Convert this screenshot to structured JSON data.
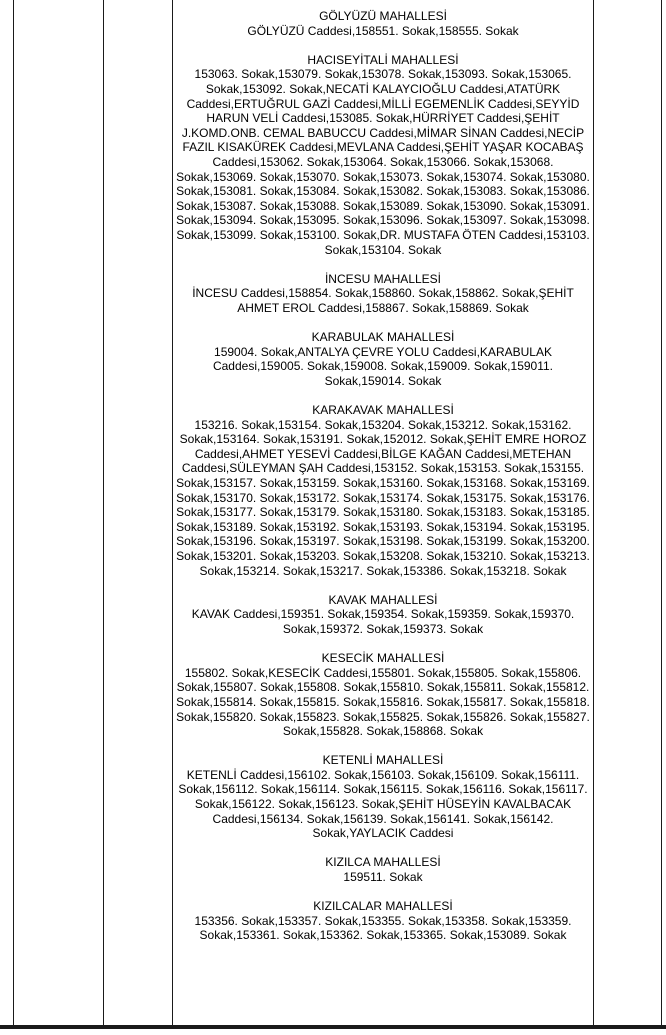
{
  "colors": {
    "background": "#ffffff",
    "text": "#000000",
    "table_border": "#1a1a1a"
  },
  "table": {
    "sections": [
      {
        "title": "GÖLYÜZÜ MAHALLESİ",
        "streets": "GÖLYÜZÜ Caddesi,158551. Sokak,158555. Sokak"
      },
      {
        "title": "HACISEYİTALİ MAHALLESİ",
        "streets": "153063. Sokak,153079. Sokak,153078. Sokak,153093. Sokak,153065. Sokak,153092. Sokak,NECATİ KALAYCIOĞLU Caddesi,ATATÜRK Caddesi,ERTUĞRUL GAZİ Caddesi,MİLLİ EGEMENLİK Caddesi,SEYYİD HARUN VELİ Caddesi,153085. Sokak,HÜRRİYET Caddesi,ŞEHİT J.KOMD.ONB. CEMAL BABUCCU Caddesi,MİMAR SİNAN Caddesi,NECİP FAZIL KISAKÜREK Caddesi,MEVLANA Caddesi,ŞEHİT YAŞAR KOCABAŞ Caddesi,153062. Sokak,153064. Sokak,153066. Sokak,153068. Sokak,153069. Sokak,153070. Sokak,153073. Sokak,153074. Sokak,153080. Sokak,153081. Sokak,153084. Sokak,153082. Sokak,153083. Sokak,153086. Sokak,153087. Sokak,153088. Sokak,153089. Sokak,153090. Sokak,153091. Sokak,153094. Sokak,153095. Sokak,153096. Sokak,153097. Sokak,153098. Sokak,153099. Sokak,153100. Sokak,DR. MUSTAFA ÖTEN Caddesi,153103. Sokak,153104. Sokak"
      },
      {
        "title": "İNCESU MAHALLESİ",
        "streets": "İNCESU Caddesi,158854. Sokak,158860. Sokak,158862. Sokak,ŞEHİT AHMET EROL Caddesi,158867. Sokak,158869. Sokak"
      },
      {
        "title": "KARABULAK MAHALLESİ",
        "streets": "159004. Sokak,ANTALYA ÇEVRE YOLU Caddesi,KARABULAK Caddesi,159005. Sokak,159008. Sokak,159009. Sokak,159011. Sokak,159014. Sokak"
      },
      {
        "title": "KARAKAVAK MAHALLESİ",
        "streets": "153216. Sokak,153154. Sokak,153204. Sokak,153212. Sokak,153162. Sokak,153164. Sokak,153191. Sokak,152012. Sokak,ŞEHİT EMRE HOROZ Caddesi,AHMET YESEVİ Caddesi,BİLGE KAĞAN Caddesi,METEHAN Caddesi,SÜLEYMAN ŞAH Caddesi,153152. Sokak,153153. Sokak,153155. Sokak,153157. Sokak,153159. Sokak,153160. Sokak,153168. Sokak,153169. Sokak,153170. Sokak,153172. Sokak,153174. Sokak,153175. Sokak,153176. Sokak,153177. Sokak,153179. Sokak,153180. Sokak,153183. Sokak,153185. Sokak,153189. Sokak,153192. Sokak,153193. Sokak,153194. Sokak,153195. Sokak,153196. Sokak,153197. Sokak,153198. Sokak,153199. Sokak,153200. Sokak,153201. Sokak,153203. Sokak,153208. Sokak,153210. Sokak,153213. Sokak,153214. Sokak,153217. Sokak,153386. Sokak,153218. Sokak"
      },
      {
        "title": "KAVAK MAHALLESİ",
        "streets": "KAVAK Caddesi,159351. Sokak,159354. Sokak,159359. Sokak,159370. Sokak,159372. Sokak,159373. Sokak"
      },
      {
        "title": "KESECİK MAHALLESİ",
        "streets": "155802. Sokak,KESECİK Caddesi,155801. Sokak,155805. Sokak,155806. Sokak,155807. Sokak,155808. Sokak,155810. Sokak,155811. Sokak,155812. Sokak,155814. Sokak,155815. Sokak,155816. Sokak,155817. Sokak,155818. Sokak,155820. Sokak,155823. Sokak,155825. Sokak,155826. Sokak,155827. Sokak,155828. Sokak,158868. Sokak"
      },
      {
        "title": "KETENLİ MAHALLESİ",
        "streets": "KETENLİ Caddesi,156102. Sokak,156103. Sokak,156109. Sokak,156111. Sokak,156112. Sokak,156114. Sokak,156115. Sokak,156116. Sokak,156117. Sokak,156122. Sokak,156123. Sokak,ŞEHİT HÜSEYİN KAVALBACAK Caddesi,156134. Sokak,156139. Sokak,156141. Sokak,156142. Sokak,YAYLACIK Caddesi"
      },
      {
        "title": "KIZILCA MAHALLESİ",
        "streets": "159511. Sokak"
      },
      {
        "title": "KIZILCALAR MAHALLESİ",
        "streets": "153356. Sokak,153357. Sokak,153355. Sokak,153358. Sokak,153359. Sokak,153361. Sokak,153362. Sokak,153365. Sokak,153089. Sokak"
      }
    ]
  }
}
